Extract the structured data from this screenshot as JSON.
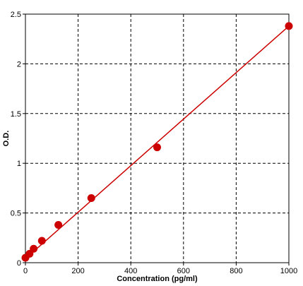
{
  "chart_data": {
    "type": "scatter",
    "title": "",
    "xlabel": "Concentration (pg/ml)",
    "ylabel": "O.D.",
    "xlim": [
      0,
      1000
    ],
    "ylim": [
      0,
      2.5
    ],
    "x_ticks": [
      0,
      200,
      400,
      600,
      800,
      1000
    ],
    "x_tick_labels": [
      "0",
      "200",
      "400",
      "600",
      "800",
      "1000"
    ],
    "y_ticks": [
      0,
      0.5,
      1,
      1.5,
      2,
      2.5
    ],
    "y_tick_labels": [
      "0",
      "0.5",
      "1",
      "1.5",
      "2",
      "2.5"
    ],
    "grid": true,
    "series": [
      {
        "points": [
          {
            "x": 0,
            "y": 0.05
          },
          {
            "x": 15.6,
            "y": 0.09
          },
          {
            "x": 31.2,
            "y": 0.14
          },
          {
            "x": 62.5,
            "y": 0.22
          },
          {
            "x": 125,
            "y": 0.38
          },
          {
            "x": 250,
            "y": 0.65
          },
          {
            "x": 500,
            "y": 1.16
          },
          {
            "x": 1000,
            "y": 2.38
          }
        ],
        "fit_line": [
          {
            "x": 0,
            "y": 0.04
          },
          {
            "x": 1000,
            "y": 2.38
          }
        ]
      }
    ],
    "colors": {
      "series": "#cc0000",
      "fit": "#cc0000",
      "grid": "#000000",
      "axis": "#000000"
    }
  }
}
